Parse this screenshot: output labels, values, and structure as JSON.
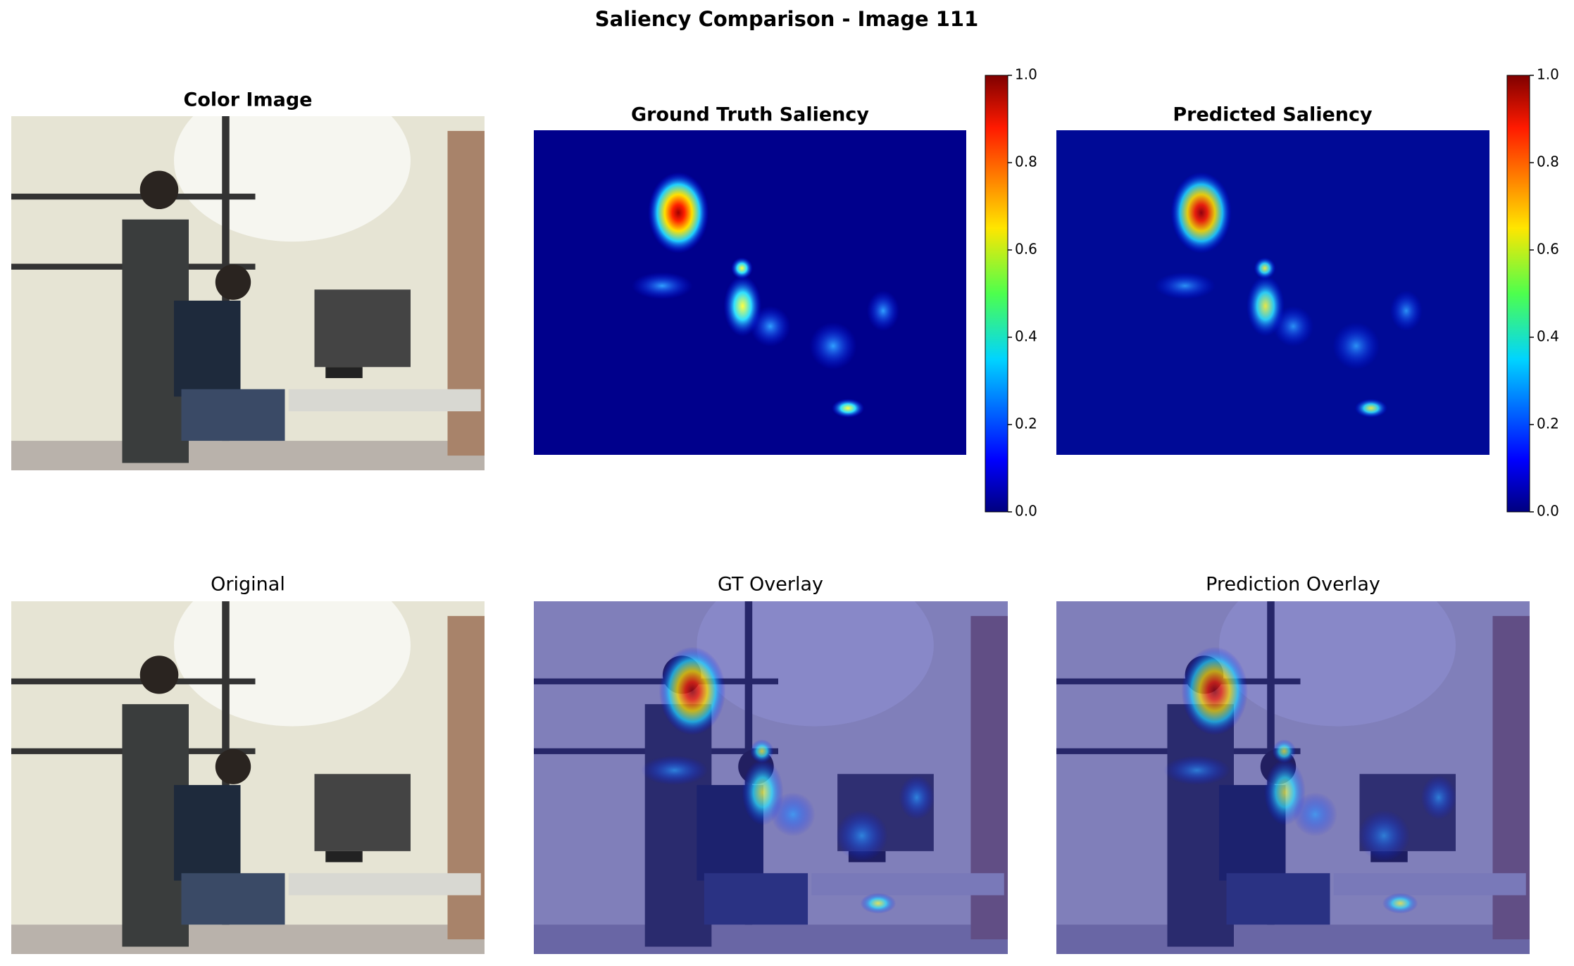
{
  "title": "Saliency Comparison - Image 111",
  "panels": [
    {
      "title": "Color Image"
    },
    {
      "title": "Ground Truth Saliency"
    },
    {
      "title": "Predicted Saliency"
    },
    {
      "title": "Original"
    },
    {
      "title": "GT Overlay"
    },
    {
      "title": "Prediction Overlay"
    }
  ],
  "colorbars": [
    {
      "lim": [
        0,
        1
      ],
      "ticks": [
        {
          "value": 0,
          "label": "0.0"
        },
        {
          "value": 0.2,
          "label": "0.2"
        },
        {
          "value": 0.4,
          "label": "0.4"
        },
        {
          "value": 0.6,
          "label": "0.6"
        },
        {
          "value": 0.8,
          "label": "0.8"
        },
        {
          "value": 1,
          "label": "1.0"
        }
      ]
    },
    {
      "lim": [
        0,
        1
      ],
      "ticks": [
        {
          "value": 0,
          "label": "0.0"
        },
        {
          "value": 0.2,
          "label": "0.2"
        },
        {
          "value": 0.4,
          "label": "0.4"
        },
        {
          "value": 0.6,
          "label": "0.6"
        },
        {
          "value": 0.8,
          "label": "0.8"
        },
        {
          "value": 1,
          "label": "1.0"
        }
      ]
    }
  ]
}
